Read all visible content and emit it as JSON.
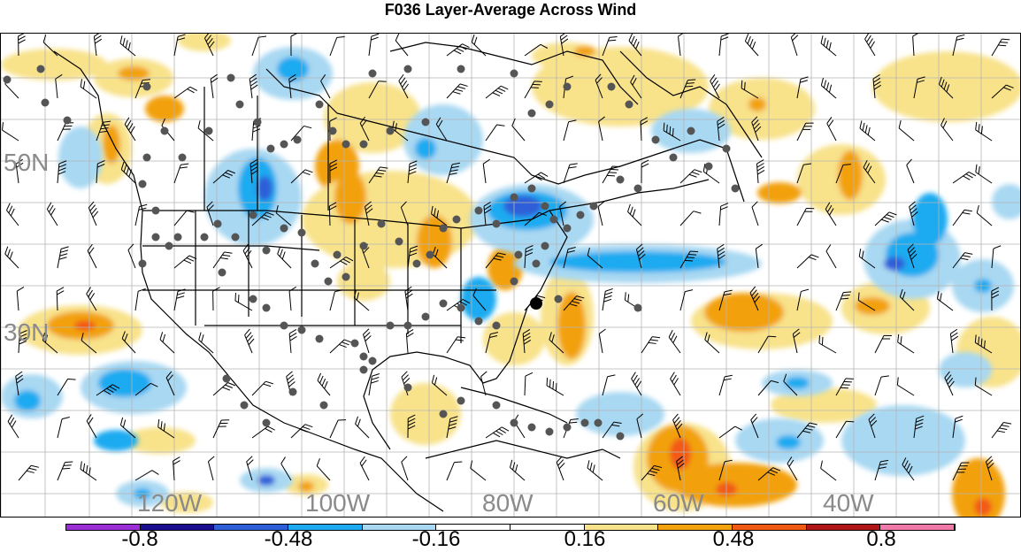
{
  "title": "F036 Layer-Average Across Wind",
  "map": {
    "lon_labels": [
      "120W",
      "100W",
      "80W",
      "60W",
      "40W"
    ],
    "lat_labels": [
      "50N",
      "30N"
    ]
  },
  "colorbar": {
    "colors": [
      "#9a2fd6",
      "#1a0f8f",
      "#2f5fd8",
      "#1eaaf0",
      "#a8d8f2",
      "#ffffff",
      "#ffffff",
      "#f8e28a",
      "#f2a10f",
      "#f25a14",
      "#b01616",
      "#f27aaa"
    ],
    "labels": [
      "-0.8",
      "-0.48",
      "-0.16",
      "0.16",
      "0.48",
      "0.8"
    ]
  }
}
